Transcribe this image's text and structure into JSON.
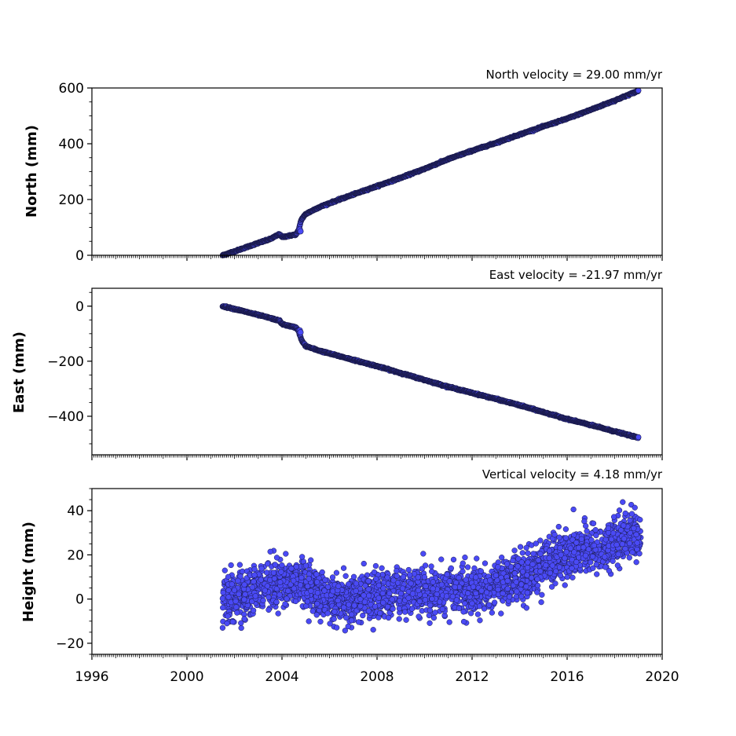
{
  "chart_data": [
    {
      "type": "scatter",
      "title": "North velocity = 29.00 mm/yr",
      "xlabel": "",
      "ylabel": "North (mm)",
      "xlim": [
        1996,
        2020
      ],
      "ylim": [
        0,
        600
      ],
      "yticks": [
        0,
        200,
        400,
        600
      ],
      "ytick_labels": [
        "0",
        "200",
        "400",
        "600"
      ],
      "xtick_labels_visible": false,
      "grid": false,
      "marker_color": "#4a4af5",
      "edge_color": "#1a1a4a",
      "series": [
        {
          "x": [
            2001.5,
            2002.0,
            2002.5,
            2003.0,
            2003.5,
            2003.9,
            2004.0,
            2004.3,
            2004.6,
            2004.7,
            2004.8,
            2004.85,
            2005.0,
            2005.5,
            2006.0,
            2007.0,
            2008.0,
            2009.0,
            2010.0,
            2011.0,
            2012.0,
            2013.0,
            2014.0,
            2015.0,
            2016.0,
            2017.0,
            2018.0,
            2019.0
          ],
          "y": [
            0,
            14,
            29,
            44,
            58,
            76,
            65,
            70,
            75,
            90,
            125,
            132,
            148,
            170,
            187,
            218,
            248,
            278,
            310,
            345,
            375,
            403,
            433,
            462,
            490,
            522,
            555,
            590
          ]
        }
      ]
    },
    {
      "type": "scatter",
      "title": "East velocity = -21.97 mm/yr",
      "xlabel": "",
      "ylabel": "East (mm)",
      "xlim": [
        1996,
        2020
      ],
      "ylim": [
        -540,
        65
      ],
      "yticks": [
        0,
        -200,
        -400
      ],
      "ytick_labels": [
        "0",
        "−200",
        "−400"
      ],
      "xtick_labels_visible": false,
      "grid": false,
      "marker_color": "#4a4af5",
      "edge_color": "#1a1a4a",
      "series": [
        {
          "x": [
            2001.5,
            2002.0,
            2002.5,
            2003.0,
            2003.5,
            2003.9,
            2004.0,
            2004.3,
            2004.6,
            2004.7,
            2004.8,
            2004.85,
            2005.0,
            2005.5,
            2006.0,
            2007.0,
            2008.0,
            2009.0,
            2010.0,
            2011.0,
            2012.0,
            2013.0,
            2014.0,
            2015.0,
            2016.0,
            2017.0,
            2018.0,
            2019.0
          ],
          "y": [
            0,
            -10,
            -21,
            -32,
            -43,
            -53,
            -65,
            -72,
            -78,
            -90,
            -118,
            -128,
            -145,
            -160,
            -172,
            -195,
            -218,
            -243,
            -268,
            -293,
            -315,
            -337,
            -360,
            -385,
            -410,
            -432,
            -455,
            -478
          ]
        }
      ]
    },
    {
      "type": "scatter",
      "title": "Vertical velocity = 4.18 mm/yr",
      "xlabel": "",
      "ylabel": "Height (mm)",
      "xlim": [
        1996,
        2020
      ],
      "ylim": [
        -25,
        50
      ],
      "yticks": [
        40,
        20,
        0,
        -20
      ],
      "ytick_labels": [
        "40",
        "20",
        "0",
        "−20"
      ],
      "xticks": [
        1996,
        2000,
        2004,
        2008,
        2012,
        2016,
        2020
      ],
      "xtick_labels": [
        "1996",
        "2000",
        "2004",
        "2008",
        "2012",
        "2016",
        "2020"
      ],
      "grid": false,
      "marker_color": "#4a4af5",
      "edge_color": "#1a1a4a",
      "series": [
        {
          "trend_x": [
            2001.5,
            2003.0,
            2004.5,
            2006.0,
            2008.0,
            2010.0,
            2012.0,
            2014.0,
            2016.0,
            2018.0,
            2019.0
          ],
          "trend_y": [
            0,
            5,
            9,
            -1,
            2,
            4,
            3,
            10,
            20,
            25,
            30
          ],
          "scatter_amplitude": 10,
          "n_points": 6400,
          "x_range": [
            2001.5,
            2019.1
          ]
        }
      ]
    }
  ]
}
